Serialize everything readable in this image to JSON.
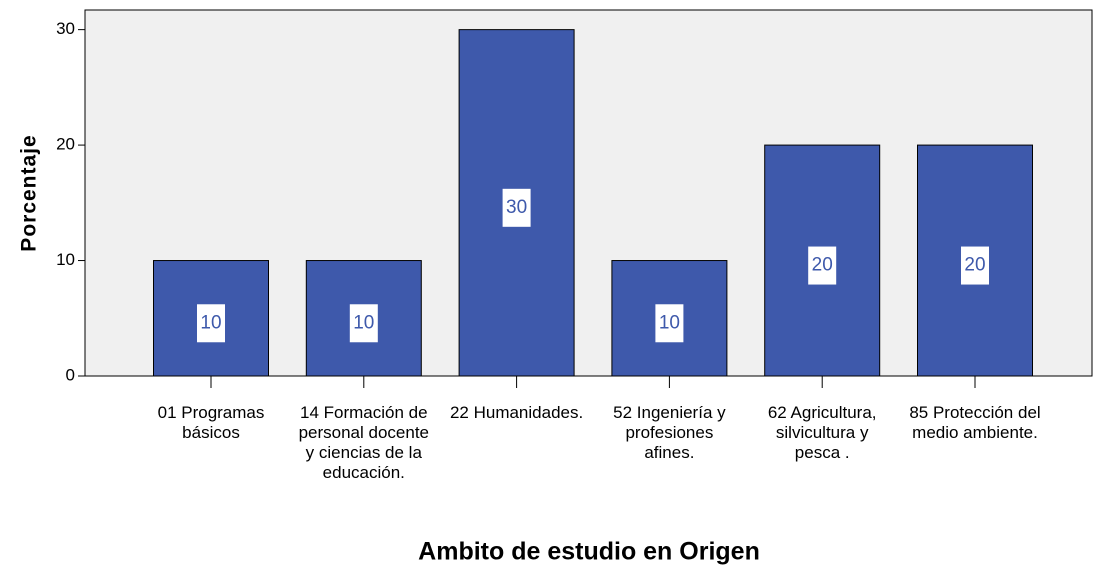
{
  "chart_data": {
    "type": "bar",
    "x_label": "Ambito de estudio en Origen",
    "y_label": "Porcentaje",
    "categories": [
      "01 Programas básicos",
      "14 Formación de personal docente y ciencias de la educación.",
      "22 Humanidades.",
      "52 Ingeniería y profesiones afines.",
      "62 Agricultura, silvicultura y pesca .",
      "85 Protección del medio ambiente."
    ],
    "values": [
      10,
      10,
      30,
      10,
      20,
      20
    ],
    "color": "#3e59ab",
    "ylim": [
      0,
      31.7
    ],
    "yticks": [
      0,
      10,
      20,
      30
    ],
    "grid": false
  }
}
